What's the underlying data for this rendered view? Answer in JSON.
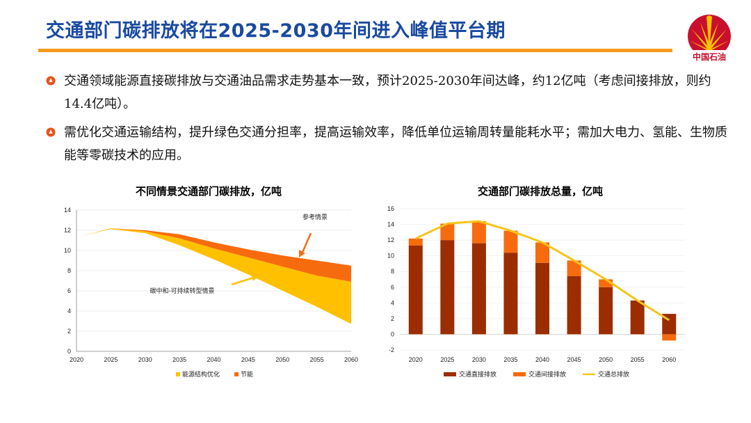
{
  "page": {
    "title": "交通部门碳排放将在2025-2030年间进入峰值平台期",
    "logo_text": "中国石油"
  },
  "bullets": [
    "交通领域能源直接碳排放与交通油品需求走势基本一致，预计2025-2030年间达峰，约12亿吨（考虑间接排放，则约14.4亿吨）。",
    "需优化交通运输结构，提升绿色交通分担率，提高运输效率，降低单位运输周转量能耗水平；需加大电力、氢能、生物质能等零碳技术的应用。"
  ],
  "colors": {
    "title": "#1a4aa0",
    "accent_bar": "#f59a1c",
    "yellow": "#ffc000",
    "orange": "#f76b0f",
    "dark_red": "#9b2d00",
    "line_yellow": "#f5c518",
    "logo_red": "#c8102e"
  },
  "chart_data": [
    {
      "type": "area",
      "title": "不同情景交通部门碳排放，亿吨",
      "x": [
        "2020",
        "2025",
        "2030",
        "2035",
        "2040",
        "2045",
        "2050",
        "2055",
        "2060"
      ],
      "xnum": [
        2020,
        2025,
        2030,
        2035,
        2040,
        2045,
        2050,
        2055,
        2060
      ],
      "reference_scenario": [
        11.3,
        12.2,
        12.0,
        11.6,
        10.8,
        10.1,
        9.5,
        9.0,
        8.5
      ],
      "mid_scenario": [
        11.3,
        12.2,
        11.9,
        11.2,
        10.2,
        9.3,
        8.4,
        7.5,
        6.9
      ],
      "carbon_neutral_scenario": [
        11.3,
        12.1,
        11.7,
        10.5,
        9.1,
        7.6,
        6.0,
        4.4,
        2.7
      ],
      "ylim": [
        0,
        14
      ],
      "yticks": [
        "0",
        "2",
        "4",
        "6",
        "8",
        "10",
        "12",
        "14"
      ],
      "annotations": [
        "参考情景",
        "碳中和-可持续转型情景"
      ],
      "legend": [
        {
          "name": "能源结构优化",
          "color": "#ffc000"
        },
        {
          "name": "节能",
          "color": "#f76b0f"
        }
      ]
    },
    {
      "type": "bar",
      "title": "交通部门碳排放总量，亿吨",
      "categories": [
        "2020",
        "2025",
        "2030",
        "2035",
        "2040",
        "2045",
        "2050",
        "2055",
        "2060"
      ],
      "series": [
        {
          "name": "交通直接排放",
          "color": "#9b2d00",
          "values": [
            11.3,
            12.0,
            11.6,
            10.4,
            9.1,
            7.4,
            6.0,
            4.3,
            2.6
          ]
        },
        {
          "name": "交通间接排放",
          "color": "#f76b0f",
          "values": [
            0.9,
            2.1,
            2.8,
            2.8,
            2.6,
            2.0,
            1.0,
            0.0,
            -0.8
          ]
        },
        {
          "name": "交通总排放",
          "color": "#f5c518",
          "values": [
            12.2,
            14.1,
            14.4,
            13.2,
            11.7,
            9.4,
            7.0,
            4.3,
            1.8
          ]
        }
      ],
      "ylim": [
        -2,
        16
      ],
      "yticks": [
        "-2",
        "0",
        "2",
        "4",
        "6",
        "8",
        "10",
        "12",
        "14",
        "16"
      ]
    }
  ]
}
